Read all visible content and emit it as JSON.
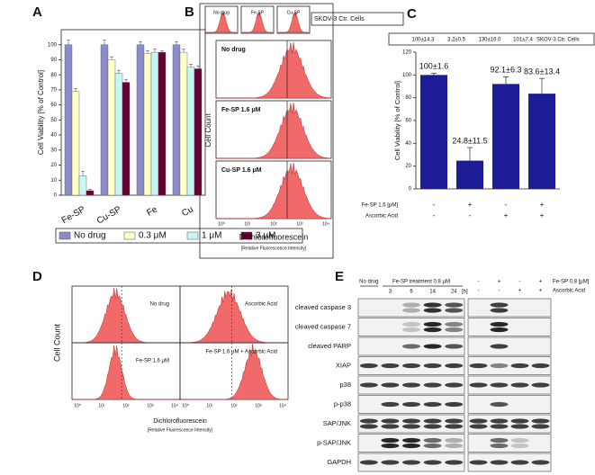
{
  "panel_labels": [
    "A",
    "B",
    "C",
    "D",
    "E"
  ],
  "chart_data": [
    {
      "type": "bar",
      "y_label": "Cell Viability [% of Control]",
      "categories": [
        "Fe-SP",
        "Cu-SP",
        "Fe",
        "Cu"
      ],
      "series": [
        {
          "name": "No drug",
          "color": "#8c8cc8",
          "values": [
            100,
            100,
            100,
            100
          ],
          "errors": [
            3,
            3,
            2,
            2
          ]
        },
        {
          "name": "0.3 μM",
          "color": "#ffffc8",
          "values": [
            69,
            90,
            94,
            95
          ],
          "errors": [
            2,
            2,
            2,
            2
          ]
        },
        {
          "name": "1 μM",
          "color": "#c8f5f5",
          "values": [
            13,
            81,
            95,
            85
          ],
          "errors": [
            3,
            2,
            2,
            2
          ]
        },
        {
          "name": "3 μM",
          "color": "#660033",
          "values": [
            3,
            75,
            95,
            84
          ],
          "errors": [
            1,
            2,
            1,
            2
          ]
        }
      ],
      "ylim": [
        0,
        110
      ],
      "yticks": [
        0,
        10,
        20,
        30,
        40,
        50,
        60,
        70,
        80,
        90,
        100
      ],
      "legend": "bottom"
    },
    {
      "type": "bar",
      "y_label": "Cell Viability [% of Control]",
      "values": [
        100,
        24.8,
        92.1,
        83.6
      ],
      "value_labels": [
        "100±1.6",
        "24.8±11.5",
        "92.1±6.3",
        "83.6±13.4"
      ],
      "errors": [
        1.6,
        11.5,
        6.3,
        13.4
      ],
      "color": "#1c1c96",
      "ylim": [
        0,
        120
      ],
      "yticks": [
        0,
        20,
        40,
        60,
        80,
        100,
        120
      ],
      "header": {
        "values": [
          "100±14.3",
          "3.2±0.5",
          "130±16.0",
          "101±7.4"
        ],
        "label": "SKOV-3 Ctr. Cells"
      },
      "conditions": [
        {
          "name": "Fe-SP 1.6 [μM]",
          "values": [
            "-",
            "+",
            "-",
            "+"
          ]
        },
        {
          "name": "Ascorbic Acid",
          "values": [
            "-",
            "-",
            "+",
            "+"
          ]
        }
      ]
    }
  ],
  "flow_b": {
    "strip": [
      "No drug",
      "Fe-SP",
      "Cu-SP"
    ],
    "strip_note": "SKOV-3 Ctr. Cells",
    "panels": [
      "No drug",
      "Fe-SP 1.6 μM",
      "Cu-SP 1.6 μM"
    ],
    "y_label": "Cell Count",
    "x_label": "Dichlorofluorescein",
    "x_sublabel": "[Relative Fluorescence Intensity]",
    "x_ticks": [
      "10⁰",
      "10¹",
      "10²",
      "10³",
      "10⁴"
    ]
  },
  "flow_d": {
    "panels": [
      "No drug",
      "Ascorbic Acid",
      "Fe-SP 1.6 μM",
      "Fe-SP 1.6 μM + Ascorbic Acid"
    ],
    "y_label": "Cell Count",
    "x_label": "Dichlorofluorescein",
    "x_sublabel": "[Relative Fluorescence Intensity]",
    "x_ticks": [
      "10⁰",
      "10¹",
      "10²",
      "10³",
      "10⁴"
    ]
  },
  "blot_e": {
    "no_drug": "No drug",
    "treatment": "Fe-SP treatment 0.8 μM",
    "times": [
      "3",
      "6",
      "14",
      "24"
    ],
    "time_unit": "[h]",
    "right_rows": [
      {
        "name": "Fe-SP 0.8 [μM]",
        "values": [
          "-",
          "+",
          "-",
          "+"
        ]
      },
      {
        "name": "Ascorbic Acid",
        "values": [
          "-",
          "-",
          "+",
          "+"
        ]
      }
    ],
    "proteins": [
      "cleaved caspase 3",
      "cleaved caspase 7",
      "cleaved PARP",
      "XIAP",
      "p38",
      "p-p38",
      "SAP/JNK",
      "p-SAP/JNK",
      "GAPDH"
    ]
  }
}
